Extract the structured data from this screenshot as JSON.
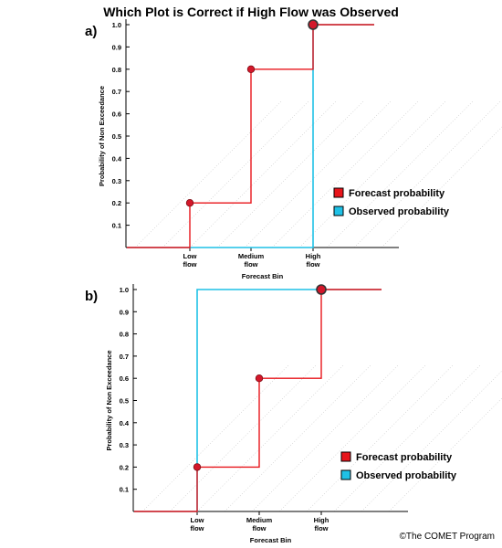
{
  "title": "Which Plot is Correct if High Flow was Observed",
  "copyright": "©The COMET Program",
  "colors": {
    "forecast": "#e8151b",
    "observed": "#1fc1e6",
    "marker": "#d3172a",
    "grid": "#c8c8c8"
  },
  "chart_data": [
    {
      "panel_label": "a)",
      "type": "line",
      "step": true,
      "xlabel": "Forecast Bin",
      "ylabel": "Probability of Non Exceedance",
      "ylim": [
        0,
        1.0
      ],
      "yticks": [
        "0.1",
        "0.2",
        "0.3",
        "0.4",
        "0.5",
        "0.6",
        "0.7",
        "0.8",
        "0.9",
        "1.0"
      ],
      "categories": [
        [
          "Low",
          "flow"
        ],
        [
          "Medium",
          "flow"
        ],
        [
          "High",
          "flow"
        ]
      ],
      "series": [
        {
          "name": "Forecast probability",
          "values": [
            0.2,
            0.8,
            1.0
          ]
        },
        {
          "name": "Observed probability",
          "values": [
            0,
            0,
            1.0
          ]
        }
      ],
      "legend": "right"
    },
    {
      "panel_label": "b)",
      "type": "line",
      "step": true,
      "xlabel": "Forecast Bin",
      "ylabel": "Probability of Non Exceedance",
      "ylim": [
        0,
        1.0
      ],
      "yticks": [
        "0.1",
        "0.2",
        "0.3",
        "0.4",
        "0.5",
        "0.6",
        "0.7",
        "0.8",
        "0.9",
        "1.0"
      ],
      "categories": [
        [
          "Low",
          "flow"
        ],
        [
          "Medium",
          "flow"
        ],
        [
          "High",
          "flow"
        ]
      ],
      "series": [
        {
          "name": "Forecast probability",
          "values": [
            0.2,
            0.6,
            1.0
          ]
        },
        {
          "name": "Observed probability",
          "values": [
            1.0,
            1.0,
            1.0
          ]
        }
      ],
      "legend": "right"
    }
  ]
}
